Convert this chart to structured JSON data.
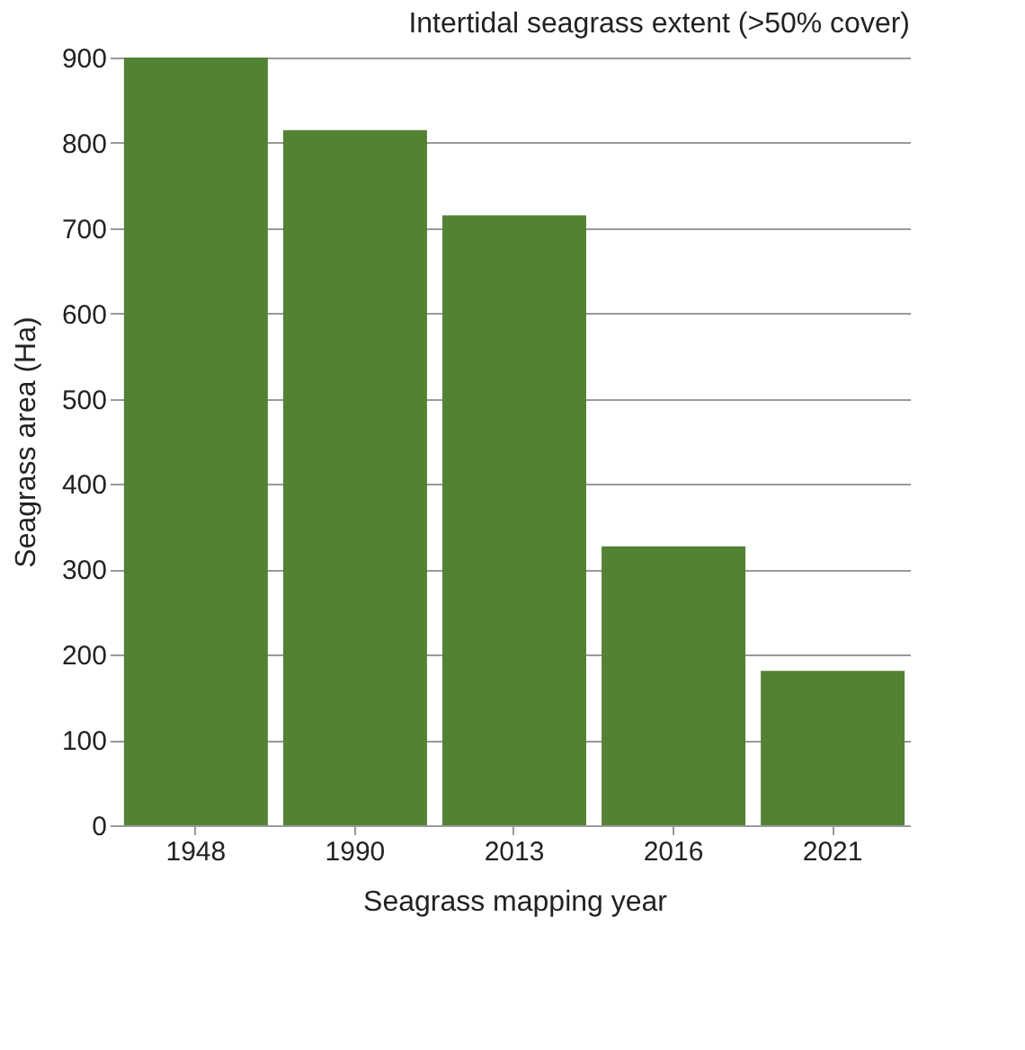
{
  "chart_data": {
    "type": "bar",
    "title": "Intertidal seagrass extent (>50% cover)",
    "xlabel": "Seagrass mapping year",
    "ylabel": "Seagrass area (Ha)",
    "categories": [
      "1948",
      "1990",
      "2013",
      "2016",
      "2021"
    ],
    "values": [
      900,
      815,
      715,
      327,
      181
    ],
    "color": "#548235",
    "ylim": [
      0,
      900
    ],
    "yticks": [
      0,
      100,
      200,
      300,
      400,
      500,
      600,
      700,
      800,
      900
    ],
    "grid": "y"
  }
}
